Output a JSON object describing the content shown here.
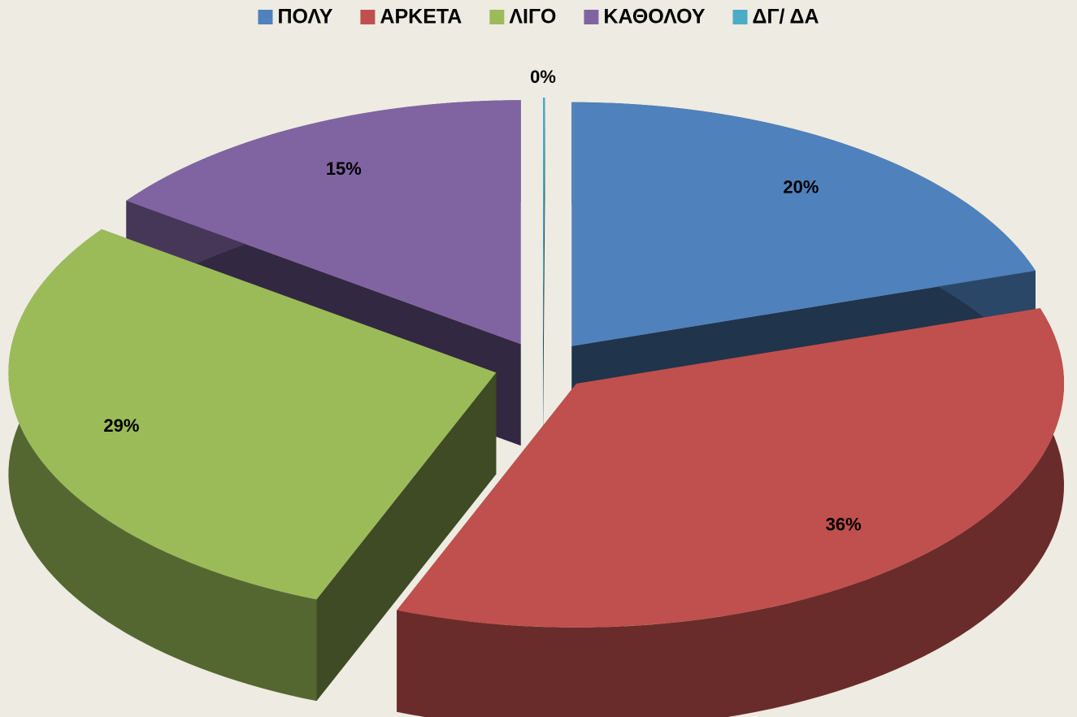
{
  "chart_data": {
    "type": "pie3d",
    "categories": [
      "ΠΟΛΥ",
      "ΑΡΚΕΤΑ",
      "ΛΙΓΟ",
      "ΚΑΘΟΛΟΥ",
      "ΔΓ/ ΔΑ"
    ],
    "values": [
      20,
      36,
      29,
      15,
      0
    ],
    "value_labels": [
      "20%",
      "36%",
      "29%",
      "15%",
      "0%"
    ],
    "colors": [
      "#4f81bd",
      "#c0504d",
      "#9bbb59",
      "#8064a2",
      "#4bacc6"
    ],
    "legend": "top"
  }
}
